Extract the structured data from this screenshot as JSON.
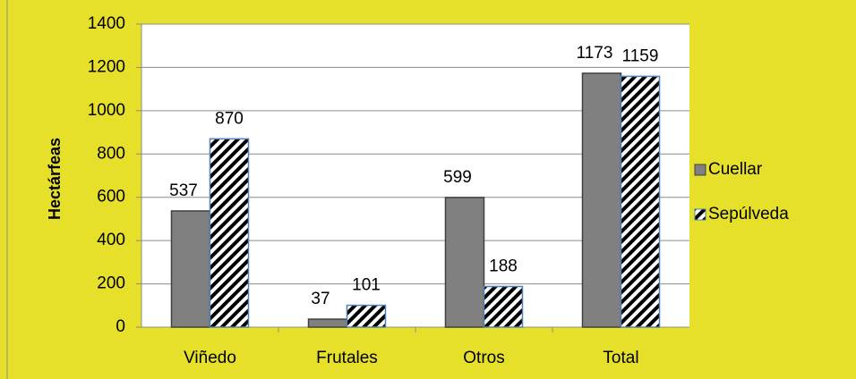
{
  "chart_data": {
    "type": "bar",
    "ylabel": "Hectárfeas",
    "categories": [
      "Viñedo",
      "Frutales",
      "Otros",
      "Total"
    ],
    "series": [
      {
        "name": "Cuellar",
        "color": "#808080",
        "values": [
          537,
          37,
          599,
          1173
        ]
      },
      {
        "name": "Sepúlveda",
        "color": "#4f81bd",
        "pattern": "hatch",
        "values": [
          870,
          101,
          188,
          1159
        ]
      }
    ],
    "ylim": [
      0,
      1400
    ],
    "yticks": [
      0,
      200,
      400,
      600,
      800,
      1000,
      1200,
      1400
    ],
    "grid": true,
    "legend": "right"
  }
}
